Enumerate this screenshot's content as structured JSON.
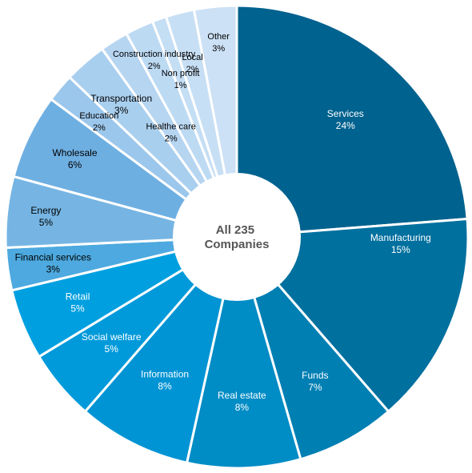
{
  "chart_data": {
    "type": "pie",
    "variant": "donut",
    "center_label": [
      "All 235",
      "Companies"
    ],
    "start_angle_deg": 0,
    "direction": "clockwise",
    "slices": [
      {
        "name": "Services",
        "value": 24,
        "label": "24%",
        "color": "#00628F"
      },
      {
        "name": "Manufacturing",
        "value": 15,
        "label": "15%",
        "color": "#00709F"
      },
      {
        "name": "Funds",
        "value": 7,
        "label": "7%",
        "color": "#007FB3"
      },
      {
        "name": "Real estate",
        "value": 8,
        "label": "8%",
        "color": "#008CC5"
      },
      {
        "name": "Information",
        "value": 8,
        "label": "8%",
        "color": "#0094D4"
      },
      {
        "name": "Social welfare",
        "value": 5,
        "label": "5%",
        "color": "#009ADA"
      },
      {
        "name": "Retail",
        "value": 5,
        "label": "5%",
        "color": "#00A0E0"
      },
      {
        "name": "Financial services",
        "value": 3,
        "label": "3%",
        "color": "#4DA9DF"
      },
      {
        "name": "Energy",
        "value": 5,
        "label": "5%",
        "color": "#76B5E3"
      },
      {
        "name": "Wholesale",
        "value": 6,
        "label": "6%",
        "color": "#6EAFE2"
      },
      {
        "name": "Education",
        "value": 2,
        "label": "2%",
        "color": "#9CC7EC"
      },
      {
        "name": "Transportation",
        "value": 3,
        "label": "3%",
        "color": "#A9CFEF"
      },
      {
        "name": "Healthe care",
        "value": 2,
        "label": "2%",
        "color": "#B6D5F1"
      },
      {
        "name": "Construction industry",
        "value": 2,
        "label": "2%",
        "color": "#BDDAF3"
      },
      {
        "name": "Non profit",
        "value": 1,
        "label": "1%",
        "color": "#C4DEF4"
      },
      {
        "name": "Local",
        "value": 2,
        "label": "2%",
        "color": "#C7DFF4"
      },
      {
        "name": "Other",
        "value": 3,
        "label": "3%",
        "color": "#CCE1F5"
      }
    ]
  }
}
